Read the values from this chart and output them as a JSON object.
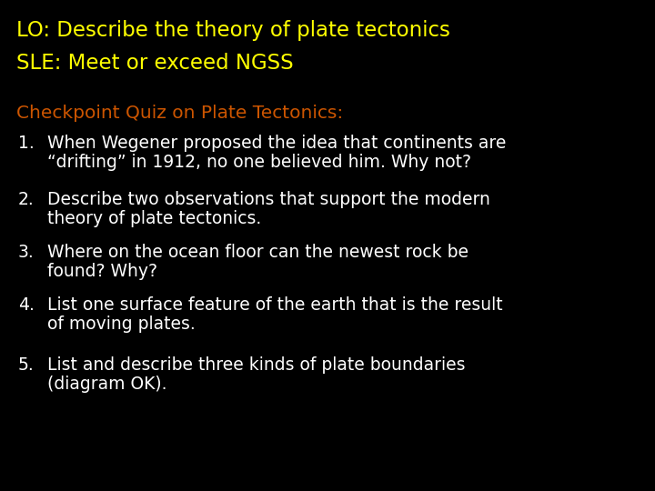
{
  "background_color": "#000000",
  "title_line1": "LO: Describe the theory of plate tectonics",
  "title_line2": "SLE: Meet or exceed NGSS",
  "title_color": "#ffff00",
  "subtitle": "Checkpoint Quiz on Plate Tectonics:",
  "subtitle_color": "#cc5500",
  "items": [
    [
      "When Wegener proposed the idea that continents are",
      "“drifting” in 1912, no one believed him. Why not?"
    ],
    [
      "Describe two observations that support the modern",
      "theory of plate tectonics."
    ],
    [
      "Where on the ocean floor can the newest rock be",
      "found? Why?"
    ],
    [
      "List one surface feature of the earth that is the result",
      "of moving plates."
    ],
    [
      "List and describe three kinds of plate boundaries",
      "(diagram OK)."
    ]
  ],
  "item_color": "#ffffff",
  "title_fontsize": 16.5,
  "subtitle_fontsize": 14.5,
  "item_fontsize": 13.5,
  "figsize": [
    7.2,
    5.4
  ],
  "dpi": 100
}
